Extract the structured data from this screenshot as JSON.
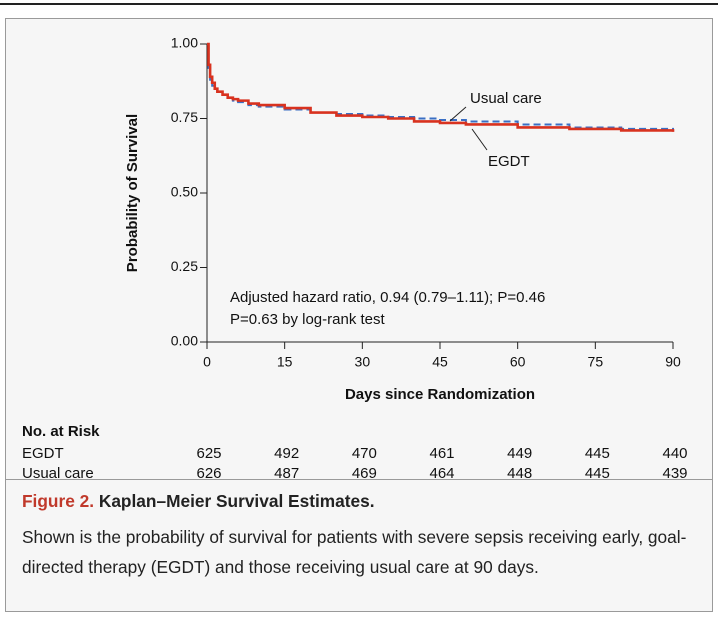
{
  "chart_data": {
    "type": "step",
    "xlabel": "Days since Randomization",
    "ylabel": "Probability of Survival",
    "xlim": [
      0,
      90
    ],
    "ylim": [
      0,
      1
    ],
    "xticks": [
      0,
      15,
      30,
      45,
      60,
      75,
      90
    ],
    "yticks": [
      {
        "value": 0,
        "label": "0.00"
      },
      {
        "value": 0.25,
        "label": "0.25"
      },
      {
        "value": 0.5,
        "label": "0.50"
      },
      {
        "value": 0.75,
        "label": "0.75"
      },
      {
        "value": 1,
        "label": "1.00"
      }
    ],
    "x": [
      0,
      0.3,
      0.6,
      1,
      1.5,
      2,
      3,
      4,
      5,
      6,
      8,
      10,
      15,
      20,
      25,
      30,
      35,
      40,
      45,
      50,
      60,
      70,
      80,
      90
    ],
    "series": [
      {
        "name": "Usual care",
        "color": "#3a6fc4",
        "dashed": true,
        "values": [
          1.0,
          0.92,
          0.88,
          0.86,
          0.85,
          0.84,
          0.83,
          0.82,
          0.81,
          0.805,
          0.795,
          0.79,
          0.78,
          0.77,
          0.765,
          0.76,
          0.755,
          0.75,
          0.745,
          0.74,
          0.73,
          0.72,
          0.715,
          0.71
        ]
      },
      {
        "name": "EGDT",
        "color": "#d8321f",
        "dashed": false,
        "values": [
          1.0,
          0.93,
          0.89,
          0.87,
          0.85,
          0.84,
          0.83,
          0.82,
          0.815,
          0.81,
          0.8,
          0.795,
          0.785,
          0.77,
          0.76,
          0.755,
          0.75,
          0.74,
          0.735,
          0.73,
          0.72,
          0.715,
          0.71,
          0.705
        ]
      }
    ],
    "annotations": [
      "Adjusted hazard ratio, 0.94 (0.79–1.11); P=0.46",
      "P=0.63 by log-rank test"
    ],
    "risk_table": {
      "title": "No. at Risk",
      "rows": [
        {
          "name": "EGDT",
          "values": [
            625,
            492,
            470,
            461,
            449,
            445,
            440
          ]
        },
        {
          "name": "Usual care",
          "values": [
            626,
            487,
            469,
            464,
            448,
            445,
            439
          ]
        }
      ]
    }
  },
  "caption": {
    "label": "Figure 2.",
    "title": "Kaplan–Meier Survival Estimates.",
    "text": "Shown is the probability of survival for patients with severe sepsis receiving early, goal-directed therapy (EGDT) and those receiving usual care at 90 days."
  }
}
